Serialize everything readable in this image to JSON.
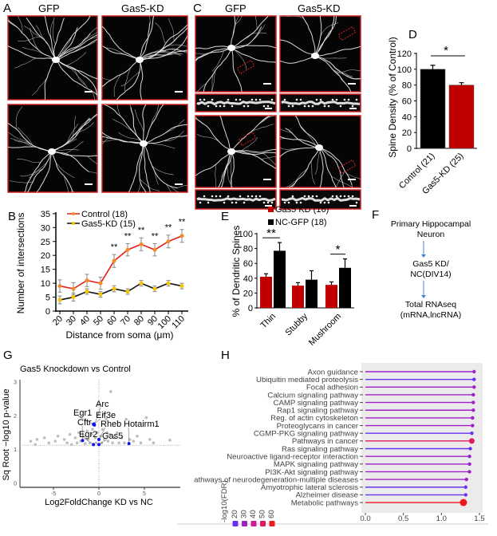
{
  "panels": {
    "A": {
      "label": "A",
      "col1": "GFP",
      "col2": "Gas5-KD"
    },
    "B": {
      "label": "B"
    },
    "C": {
      "label": "C",
      "col1": "GFP",
      "col2": "Gas5-KD"
    },
    "D": {
      "label": "D"
    },
    "E": {
      "label": "E"
    },
    "F": {
      "label": "F"
    },
    "G": {
      "label": "G"
    },
    "H": {
      "label": "H"
    }
  },
  "flowchart": {
    "steps": [
      [
        "Primary Hippocampal",
        "Neuron"
      ],
      [
        "Gas5 KD/",
        "NC(DIV14)"
      ],
      [
        "Total RNAseq",
        "(mRNA,lncRNA)"
      ]
    ],
    "arrow_color": "#4a7fd6"
  },
  "chart_data": [
    {
      "id": "B",
      "type": "line",
      "x": [
        20,
        30,
        40,
        50,
        60,
        70,
        80,
        90,
        100,
        110
      ],
      "series": [
        {
          "name": "Control (18)",
          "values": [
            9,
            8,
            11,
            10,
            18,
            22,
            24,
            22,
            25,
            27
          ],
          "errors": [
            2.2,
            2.2,
            2.2,
            2.2,
            2.3,
            2.2,
            2.3,
            2.2,
            2.3,
            2.3
          ],
          "line_color": "#e0201a",
          "marker_color": "#f58a2a"
        },
        {
          "name": "Gas5-KD (15)",
          "values": [
            4,
            5,
            7,
            6,
            8,
            7,
            10,
            8,
            10,
            9
          ],
          "errors": [
            1.4,
            1.4,
            1.0,
            1.0,
            1.1,
            1.0,
            1.0,
            1.0,
            1.0,
            1.0
          ],
          "line_color": "#111111",
          "marker_color": "#f5c200"
        }
      ],
      "significance": {
        "60": "**",
        "70": "**",
        "80": "**",
        "90": "**",
        "100": "**",
        "110": "**"
      },
      "xlabel": "Distance from soma (μm)",
      "ylabel": "Number of intersections",
      "yticks": [
        0,
        5,
        10,
        15,
        20,
        25,
        30,
        35
      ],
      "ylim": [
        0,
        35
      ],
      "legend_color": "#1f88d6",
      "legend": "top-left"
    },
    {
      "id": "D",
      "type": "bar",
      "categories": [
        "Control (21)",
        "Gas5-KD (25)"
      ],
      "values": [
        100,
        80
      ],
      "errors": [
        5,
        3
      ],
      "colors": [
        "#000000",
        "#c00000"
      ],
      "ylabel": "Spine Density (% of Control)",
      "yticks": [
        0,
        20,
        40,
        60,
        80,
        100,
        120
      ],
      "ylim": [
        0,
        120
      ],
      "significance": "*"
    },
    {
      "id": "E",
      "type": "bar",
      "categories": [
        "Thin",
        "Stubby",
        "Mushroom"
      ],
      "series": [
        {
          "name": "Gas5 KD (16)",
          "values": [
            42,
            30,
            31
          ],
          "errors": [
            4,
            4,
            4
          ],
          "color": "#c00000"
        },
        {
          "name": "NC-GFP (18)",
          "values": [
            77,
            38,
            54
          ],
          "errors": [
            11,
            12,
            12
          ],
          "color": "#000000"
        }
      ],
      "ylabel": "% of Dendritic  Spines",
      "yticks": [
        0,
        20,
        40,
        60,
        80,
        100
      ],
      "ylim": [
        0,
        100
      ],
      "significance": {
        "Thin": "**",
        "Mushroom": "*"
      }
    },
    {
      "id": "G",
      "type": "scatter",
      "title": "Gas5 Knockdown vs Control",
      "xlabel": "Log2FoldChange KD vs NC",
      "ylabel": "Sq Root −log10 p-value",
      "xticks": [
        -5,
        0,
        5
      ],
      "yticks": [
        0,
        1,
        2,
        3
      ],
      "xlim": [
        -8.5,
        9
      ],
      "ylim": [
        0,
        3.1
      ],
      "threshold_y": 1.13,
      "highlight_color": "#1010ee",
      "point_color": "#bdbdbd",
      "highlighted": [
        {
          "label": "Egr1",
          "x": -0.6,
          "y": 1.75
        },
        {
          "label": "Arc",
          "x": -0.5,
          "y": 1.73
        },
        {
          "label": "Eif3e",
          "x": -0.55,
          "y": 1.76
        },
        {
          "label": "Cftr",
          "x": -1.8,
          "y": 1.27
        },
        {
          "label": "Egr2",
          "x": -0.6,
          "y": 1.15
        },
        {
          "label": "Rheb",
          "x": 0.0,
          "y": 1.3
        },
        {
          "label": "Gas5",
          "x": 0.0,
          "y": 1.15
        },
        {
          "label": "Hotairm1",
          "x": 3.3,
          "y": 1.18
        }
      ],
      "points": [
        [
          -7.5,
          1.25
        ],
        [
          -7.0,
          1.15
        ],
        [
          -6.8,
          1.3
        ],
        [
          -5.5,
          1.2
        ],
        [
          -4.8,
          1.25
        ],
        [
          -4.5,
          1.4
        ],
        [
          -3.8,
          1.3
        ],
        [
          -3.5,
          1.2
        ],
        [
          -3.2,
          1.45
        ],
        [
          -3.0,
          1.15
        ],
        [
          -2.6,
          1.35
        ],
        [
          -2.4,
          1.2
        ],
        [
          -2.2,
          1.5
        ],
        [
          -2.0,
          1.25
        ],
        [
          -1.7,
          1.4
        ],
        [
          -1.5,
          1.18
        ],
        [
          -1.3,
          1.55
        ],
        [
          -1.2,
          1.3
        ],
        [
          -1.0,
          1.2
        ],
        [
          -0.8,
          1.45
        ],
        [
          -0.7,
          1.6
        ],
        [
          -0.4,
          1.35
        ],
        [
          -0.3,
          1.2
        ],
        [
          -0.2,
          1.5
        ],
        [
          0.2,
          1.4
        ],
        [
          0.3,
          1.2
        ],
        [
          0.4,
          1.6
        ],
        [
          0.5,
          2.05
        ],
        [
          0.6,
          1.3
        ],
        [
          0.8,
          1.9
        ],
        [
          0.9,
          1.5
        ],
        [
          1.0,
          1.25
        ],
        [
          1.2,
          1.45
        ],
        [
          1.3,
          2.72
        ],
        [
          1.5,
          1.2
        ],
        [
          1.7,
          1.35
        ],
        [
          2.0,
          1.5
        ],
        [
          2.2,
          1.2
        ],
        [
          2.5,
          1.35
        ],
        [
          2.8,
          1.2
        ],
        [
          3.0,
          1.9
        ],
        [
          3.4,
          1.3
        ],
        [
          3.8,
          1.25
        ],
        [
          4.2,
          1.4
        ],
        [
          4.6,
          1.2
        ],
        [
          5.2,
          1.95
        ],
        [
          5.6,
          1.3
        ],
        [
          6.0,
          1.2
        ],
        [
          7.8,
          1.28
        ],
        [
          -6.0,
          1.35
        ]
      ]
    },
    {
      "id": "H",
      "type": "lollipop",
      "categories": [
        "Axon guidance",
        "Ubiquitin mediated proteolysis",
        "Focal adhesion",
        "Calcium signaling pathway",
        "CAMP signaling pathway",
        "Rap1 signaling pathway",
        "Reg. of actin cytoskeleton",
        "Proteoglycans in cancer",
        "CGMP-PKG signaling pathway",
        "Pathways in cancer",
        "Ras signaling pathway",
        "Neuroactive ligand-receptor interaction",
        "MAPK signaling pathway",
        "PI3K-Akt signaling pathway",
        "athways of neurodegeneration-multiple diseases",
        "Amyotrophic lateral sclerosis",
        "Alzheimer disease",
        "Metabolic pathways"
      ],
      "values": [
        1.43,
        1.43,
        1.43,
        1.42,
        1.42,
        1.42,
        1.41,
        1.41,
        1.4,
        1.4,
        1.38,
        1.37,
        1.37,
        1.37,
        1.33,
        1.32,
        1.32,
        1.29
      ],
      "neg_log10_fdr": [
        25,
        20,
        26,
        28,
        27,
        25,
        26,
        25,
        20,
        52,
        22,
        28,
        24,
        27,
        30,
        22,
        21,
        62
      ],
      "xticks": [
        "0.0",
        "0.5",
        "1.0",
        "1.5"
      ],
      "xlim": [
        0,
        1.55
      ],
      "legend_title": "-log10(FDR)",
      "legend_values": [
        "20",
        "30",
        "40",
        "50",
        "60"
      ],
      "legend_colors": [
        "#6a30f0",
        "#a020c8",
        "#cc1c98",
        "#e01a60",
        "#f01820"
      ]
    }
  ]
}
